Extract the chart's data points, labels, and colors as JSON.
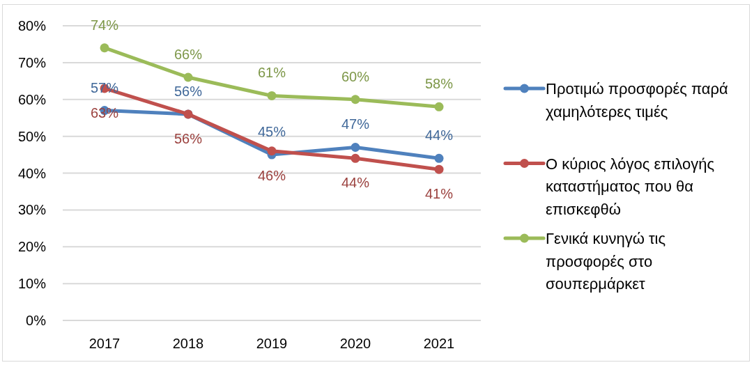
{
  "chart_data": {
    "type": "line",
    "categories": [
      "2017",
      "2018",
      "2019",
      "2020",
      "2021"
    ],
    "series": [
      {
        "name": "Προτιμώ προσφορές παρά χαμηλότερες τιμές",
        "color": "#4f81bd",
        "values": [
          57,
          56,
          45,
          47,
          44
        ],
        "value_labels": [
          "57%",
          "56%",
          "45%",
          "47%",
          "44%"
        ]
      },
      {
        "name": "Ο κύριος λόγος επιλογής καταστήματος που θα επισκεφθώ",
        "color": "#c0504d",
        "values": [
          63,
          56,
          46,
          44,
          41
        ],
        "value_labels": [
          "63%",
          "56%",
          "46%",
          "44%",
          "41%"
        ]
      },
      {
        "name": "Γενικά κυνηγώ τις προσφορές στο σουπερμάρκετ",
        "color": "#9bbb59",
        "values": [
          74,
          66,
          61,
          60,
          58
        ],
        "value_labels": [
          "74%",
          "66%",
          "61%",
          "60%",
          "58%"
        ]
      }
    ],
    "ylim": [
      0,
      80
    ],
    "yticks": [
      {
        "value": 0,
        "label": "0%"
      },
      {
        "value": 10,
        "label": "10%"
      },
      {
        "value": 20,
        "label": "20%"
      },
      {
        "value": 30,
        "label": "30%"
      },
      {
        "value": 40,
        "label": "40%"
      },
      {
        "value": 50,
        "label": "50%"
      },
      {
        "value": 60,
        "label": "60%"
      },
      {
        "value": 70,
        "label": "70%"
      },
      {
        "value": 80,
        "label": "80%"
      }
    ],
    "grid": "y",
    "legend": "right",
    "marker": "circle",
    "line_style": "solid"
  }
}
